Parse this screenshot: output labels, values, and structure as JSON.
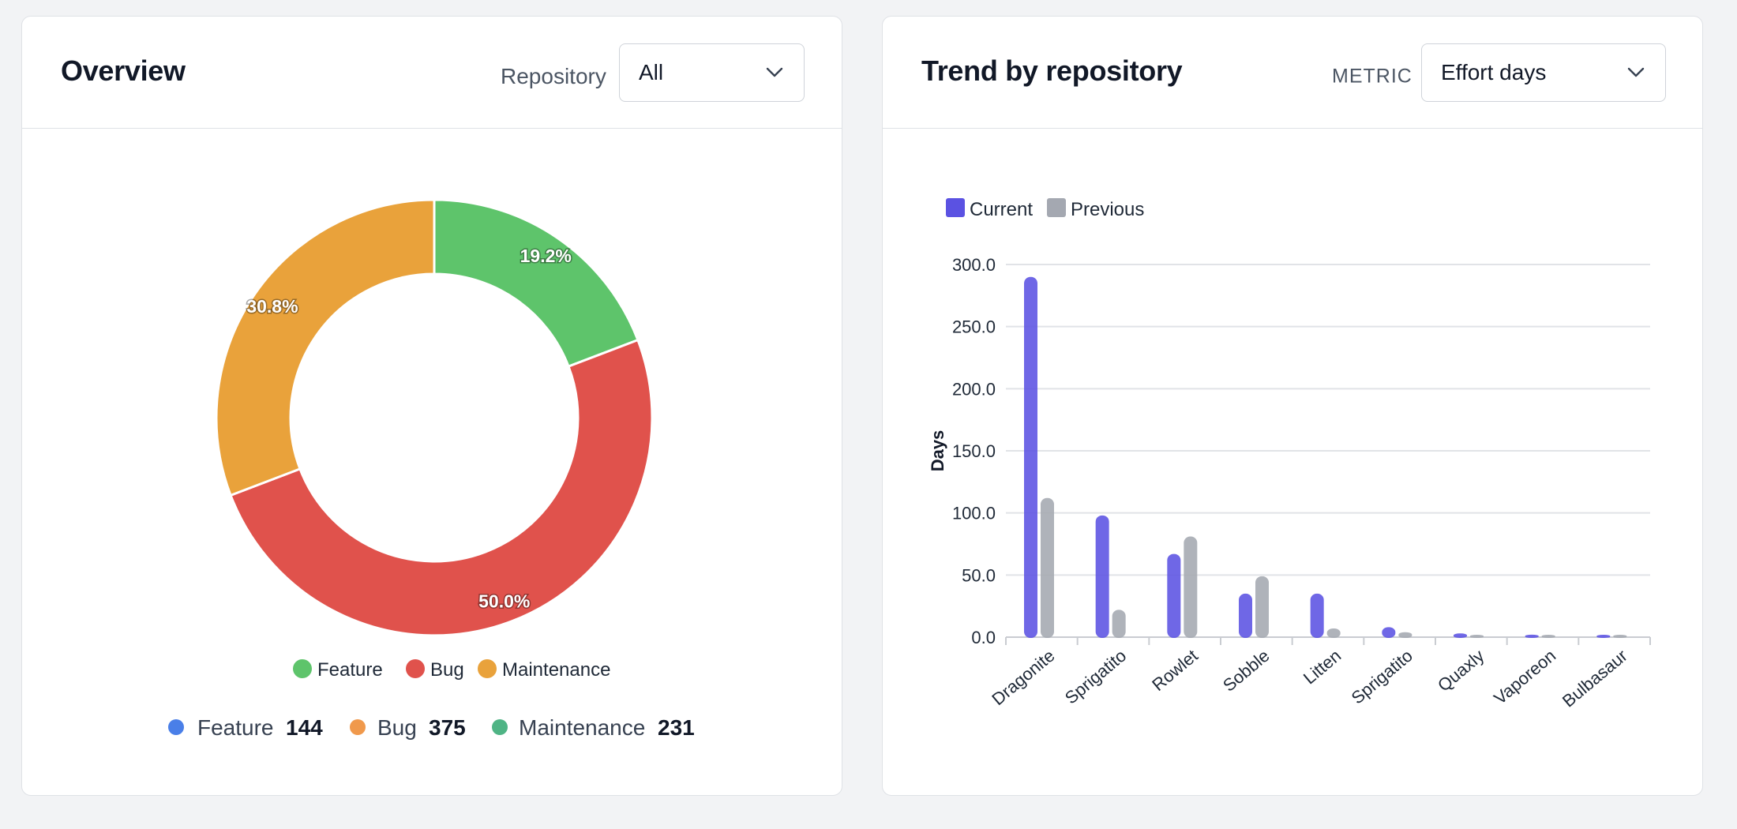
{
  "overview": {
    "title": "Overview",
    "filter_label": "Repository",
    "filter_value": "All",
    "chevron_icon": "chevron-down-icon",
    "legend": [
      {
        "label": "Feature",
        "color": "#5ec46b"
      },
      {
        "label": "Bug",
        "color": "#e0524c"
      },
      {
        "label": "Maintenance",
        "color": "#e9a23b"
      }
    ],
    "stats": [
      {
        "label": "Feature",
        "value": "144",
        "color": "#4a7fe8"
      },
      {
        "label": "Bug",
        "value": "375",
        "color": "#f0994c"
      },
      {
        "label": "Maintenance",
        "value": "231",
        "color": "#4fb485"
      }
    ]
  },
  "trend": {
    "title": "Trend by repository",
    "filter_label": "METRIC",
    "filter_value": "Effort days",
    "chevron_icon": "chevron-down-icon"
  },
  "chart_data": [
    {
      "type": "pie",
      "variant": "donut",
      "labels": [
        "Feature",
        "Bug",
        "Maintenance"
      ],
      "values": [
        144,
        375,
        231
      ],
      "data_labels": [
        "19.2%",
        "50.0%",
        "30.8%"
      ],
      "colors": [
        "#5ec46b",
        "#e0524c",
        "#e9a23b"
      ],
      "legend_position": "bottom"
    },
    {
      "type": "bar",
      "categories": [
        "Dragonite",
        "Sprigatito",
        "Rowlet",
        "Sobble",
        "Litten",
        "Sprigatito",
        "Quaxly",
        "Vaporeon",
        "Bulbasaur"
      ],
      "series": [
        {
          "name": "Current",
          "color": "#5b52e2",
          "values": [
            290,
            98,
            67,
            35,
            35,
            8,
            3,
            2,
            0.3
          ]
        },
        {
          "name": "Previous",
          "color": "#a4a8b1",
          "values": [
            112,
            22,
            81,
            49,
            7,
            4,
            0.5,
            0.3,
            0.3
          ]
        }
      ],
      "ylabel": "Days",
      "xlabel": "",
      "ylim": [
        0,
        300
      ],
      "yticks": [
        "0.0",
        "50.0",
        "100.0",
        "150.0",
        "200.0",
        "250.0",
        "300.0"
      ],
      "legend_position": "top-left",
      "grid": true
    }
  ]
}
